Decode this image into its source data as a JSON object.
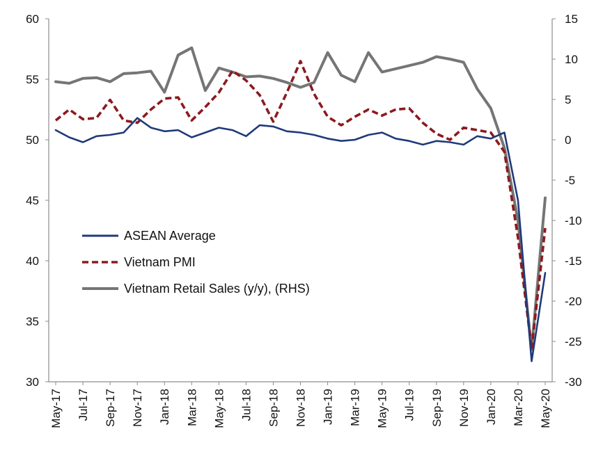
{
  "chart_data": {
    "type": "line",
    "title": "",
    "xlabel": "",
    "ylabel_left": "",
    "ylabel_right": "",
    "ylim_left": [
      30,
      60
    ],
    "yticks_left": [
      30,
      35,
      40,
      45,
      50,
      55,
      60
    ],
    "ylim_right": [
      -30,
      15
    ],
    "yticks_right": [
      -30,
      -25,
      -20,
      -15,
      -10,
      -5,
      0,
      5,
      10,
      15
    ],
    "grid": false,
    "legend_position": "center-left",
    "categories": [
      "May-17",
      "Jun-17",
      "Jul-17",
      "Aug-17",
      "Sep-17",
      "Oct-17",
      "Nov-17",
      "Dec-17",
      "Jan-18",
      "Feb-18",
      "Mar-18",
      "Apr-18",
      "May-18",
      "Jun-18",
      "Jul-18",
      "Aug-18",
      "Sep-18",
      "Oct-18",
      "Nov-18",
      "Dec-18",
      "Jan-19",
      "Feb-19",
      "Mar-19",
      "Apr-19",
      "May-19",
      "Jun-19",
      "Jul-19",
      "Aug-19",
      "Sep-19",
      "Oct-19",
      "Nov-19",
      "Dec-19",
      "Jan-20",
      "Feb-20",
      "Mar-20",
      "Apr-20",
      "May-20"
    ],
    "x_tick_labels": [
      "May-17",
      "Jul-17",
      "Sep-17",
      "Nov-17",
      "Jan-18",
      "Mar-18",
      "May-18",
      "Jul-18",
      "Sep-18",
      "Nov-18",
      "Jan-19",
      "Mar-19",
      "May-19",
      "Jul-19",
      "Sep-19",
      "Nov-19",
      "Jan-20",
      "Mar-20",
      "May-20"
    ],
    "series": [
      {
        "name": "ASEAN Average",
        "axis": "left",
        "color": "#1f3a7a",
        "style": "solid",
        "values": [
          50.8,
          50.2,
          49.8,
          50.3,
          50.4,
          50.6,
          51.8,
          51.0,
          50.7,
          50.8,
          50.2,
          50.6,
          51.0,
          50.8,
          50.3,
          51.2,
          51.1,
          50.7,
          50.6,
          50.4,
          50.1,
          49.9,
          50.0,
          50.4,
          50.6,
          50.1,
          49.9,
          49.6,
          49.9,
          49.8,
          49.6,
          50.3,
          50.1,
          50.6,
          45.0,
          31.7,
          39.0
        ]
      },
      {
        "name": "Vietnam PMI",
        "axis": "left",
        "color": "#8b1a1f",
        "style": "dashed",
        "values": [
          51.6,
          52.5,
          51.7,
          51.8,
          53.3,
          51.6,
          51.4,
          52.5,
          53.4,
          53.5,
          51.6,
          52.7,
          53.9,
          55.7,
          54.9,
          53.7,
          51.5,
          53.9,
          56.5,
          53.8,
          51.9,
          51.2,
          51.9,
          52.5,
          52.0,
          52.5,
          52.6,
          51.4,
          50.5,
          50.0,
          51.0,
          50.8,
          50.6,
          49.0,
          41.9,
          32.7,
          42.7
        ]
      },
      {
        "name": "Vietnam Retail Sales (y/y), (RHS)",
        "axis": "right",
        "color": "#757575",
        "style": "solid",
        "values": [
          7.2,
          7.0,
          7.6,
          7.7,
          7.2,
          8.2,
          8.3,
          8.5,
          5.9,
          10.5,
          11.4,
          6.1,
          8.9,
          8.4,
          7.8,
          7.9,
          7.6,
          7.1,
          6.5,
          7.1,
          10.8,
          8.0,
          7.2,
          10.8,
          8.4,
          8.8,
          9.2,
          9.6,
          10.3,
          10.0,
          9.6,
          6.3,
          3.9,
          -1.0,
          -10.0,
          -26.0,
          -7.2
        ]
      }
    ]
  }
}
